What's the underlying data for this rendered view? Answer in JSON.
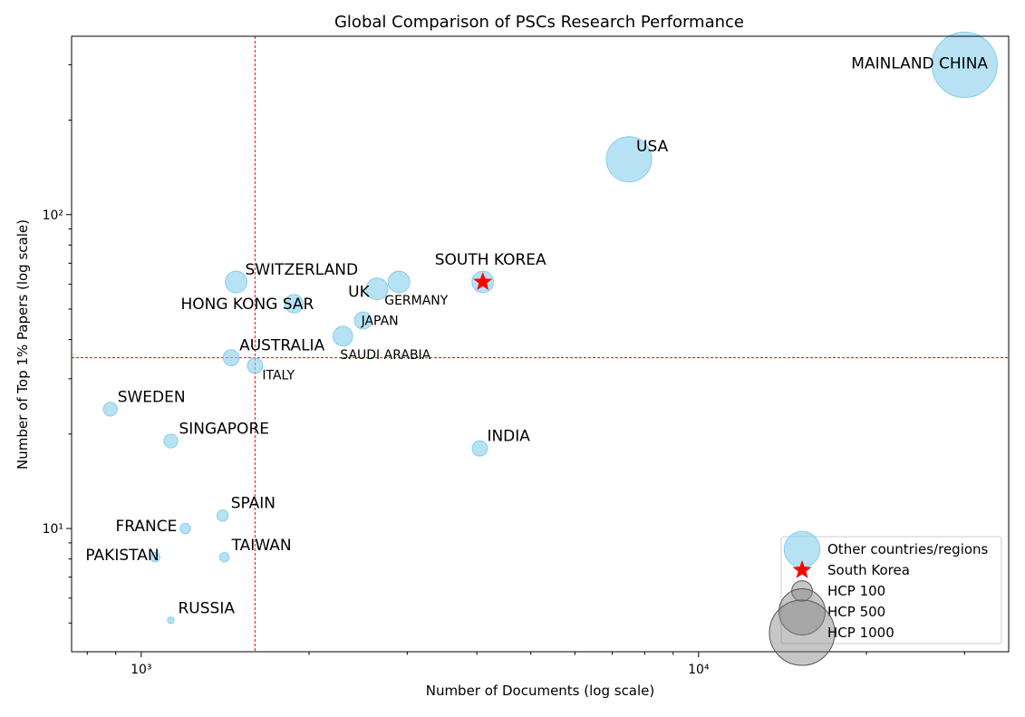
{
  "chart_data": {
    "type": "scatter",
    "title": "Global Comparison of PSCs Research Performance",
    "xlabel": "Number of Documents (log scale)",
    "ylabel": "Number of Top 1% Papers (log scale)",
    "xscale": "log",
    "yscale": "log",
    "xlim": [
      750,
      36000
    ],
    "ylim": [
      4.05,
      370
    ],
    "x_ticks": [
      {
        "value": 1000,
        "label": "10³"
      },
      {
        "value": 10000,
        "label": "10⁴"
      }
    ],
    "y_ticks": [
      {
        "value": 10,
        "label": "10¹"
      },
      {
        "value": 100,
        "label": "10²"
      }
    ],
    "reference_lines": {
      "x": 1600,
      "y": 35,
      "color": "#ff0000"
    },
    "colors": {
      "other": "#87ceeb",
      "highlight": "#ff0000",
      "hcp_legend": "#808080"
    },
    "points": [
      {
        "name": "MAINLAND CHINA",
        "x": 30000,
        "y": 300,
        "hcp": 1000
      },
      {
        "name": "USA",
        "x": 7500,
        "y": 150,
        "hcp": 480
      },
      {
        "name": "SOUTH KOREA",
        "x": 4100,
        "y": 61,
        "hcp": 110,
        "highlight": true
      },
      {
        "name": "GERMANY",
        "x": 2900,
        "y": 61,
        "hcp": 110
      },
      {
        "name": "UK",
        "x": 2650,
        "y": 58,
        "hcp": 110
      },
      {
        "name": "SWITZERLAND",
        "x": 1480,
        "y": 61,
        "hcp": 110
      },
      {
        "name": "HONG KONG SAR",
        "x": 1880,
        "y": 52,
        "hcp": 80
      },
      {
        "name": "JAPAN",
        "x": 2500,
        "y": 46,
        "hcp": 70
      },
      {
        "name": "SAUDI ARABIA",
        "x": 2300,
        "y": 41,
        "hcp": 90
      },
      {
        "name": "AUSTRALIA",
        "x": 1450,
        "y": 35,
        "hcp": 60
      },
      {
        "name": "ITALY",
        "x": 1600,
        "y": 33,
        "hcp": 55
      },
      {
        "name": "SWEDEN",
        "x": 880,
        "y": 24,
        "hcp": 45
      },
      {
        "name": "SINGAPORE",
        "x": 1130,
        "y": 19,
        "hcp": 45
      },
      {
        "name": "INDIA",
        "x": 4050,
        "y": 18,
        "hcp": 55
      },
      {
        "name": "SPAIN",
        "x": 1400,
        "y": 11,
        "hcp": 30
      },
      {
        "name": "FRANCE",
        "x": 1200,
        "y": 10,
        "hcp": 25
      },
      {
        "name": "PAKISTAN",
        "x": 1060,
        "y": 8.1,
        "hcp": 20
      },
      {
        "name": "TAIWAN",
        "x": 1410,
        "y": 8.1,
        "hcp": 20
      },
      {
        "name": "RUSSIA",
        "x": 1130,
        "y": 5.1,
        "hcp": 10
      }
    ],
    "legend": {
      "position": "lower-right",
      "entries": [
        {
          "label": "Other countries/regions",
          "marker": "circle",
          "color": "#87ceeb",
          "hcp": 300
        },
        {
          "label": "South Korea",
          "marker": "star",
          "color": "#ff0000"
        },
        {
          "label": "HCP 100",
          "marker": "circle",
          "color": "#808080",
          "hcp": 100
        },
        {
          "label": "HCP 500",
          "marker": "circle",
          "color": "#808080",
          "hcp": 500
        },
        {
          "label": "HCP 1000",
          "marker": "circle",
          "color": "#808080",
          "hcp": 1000
        }
      ]
    }
  }
}
